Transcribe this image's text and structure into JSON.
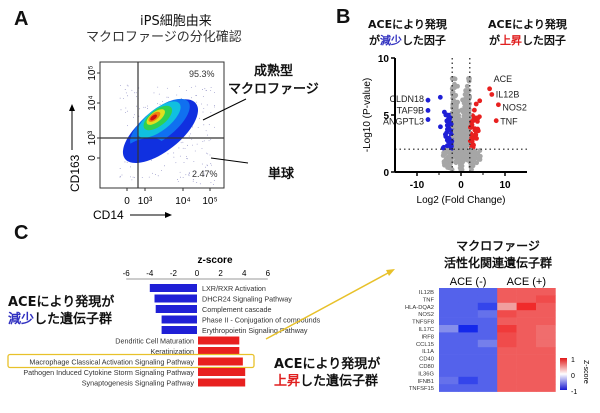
{
  "panels": {
    "a": {
      "letter": "A",
      "title_line1": "iPS細胞由来",
      "title_line2": "マクロファージの分化確認",
      "label_mature_1": "成熟型",
      "label_mature_2": "マクロファージ",
      "label_monocyte": "単球"
    },
    "b": {
      "letter": "B",
      "left_title_1": "ACEにより発現",
      "left_title_2a": "が",
      "left_title_2b": "減少",
      "left_title_2c": "した因子",
      "right_title_1": "ACEにより発現",
      "right_title_2a": "が",
      "right_title_2b": "上昇",
      "right_title_2c": "した因子"
    },
    "c": {
      "letter": "C",
      "down_label_1": "ACEにより発現が",
      "down_label_2a": "減少",
      "down_label_2b": "した遺伝子群",
      "up_label_1": "ACEにより発現が",
      "up_label_2a": "上昇",
      "up_label_2b": "した遺伝子群",
      "heatmap_title_1": "マクロファージ",
      "heatmap_title_2": "活性化関連遺伝子群"
    }
  },
  "colors": {
    "down": "#1f1fd6",
    "up": "#e8201f",
    "ns": "#a6a6a6",
    "highlight": "#e8c12a",
    "accent_down_text": "#3030c0",
    "accent_up_text": "#e02020"
  },
  "chart_data": [
    {
      "type": "scatter",
      "subtype": "flow-cytometry-density",
      "xlabel": "CD14",
      "ylabel": "CD163",
      "x_ticks": [
        "0",
        "10³",
        "10⁴",
        "10⁵"
      ],
      "y_ticks": [
        "0",
        "10³",
        "10⁴",
        "10⁵"
      ],
      "quadrant_values": {
        "upper_right": "95.3%",
        "lower_right": "2.47%"
      }
    },
    {
      "type": "scatter",
      "subtype": "volcano",
      "xlabel": "Log2 (Fold Change)",
      "ylabel": "-Log10 (P-value)",
      "xlim": [
        -15,
        15
      ],
      "ylim": [
        0,
        10
      ],
      "x_ticks": [
        "-10",
        "0",
        "10"
      ],
      "y_ticks": [
        "0",
        "5",
        "10"
      ],
      "thresholds": {
        "fold_change": [
          -2,
          2
        ],
        "p_value": 2
      },
      "labeled_genes": [
        {
          "name": "CLDN18",
          "x": -7.5,
          "y": 6.3
        },
        {
          "name": "TAF9B",
          "x": -7.5,
          "y": 5.4
        },
        {
          "name": "ANGPTL3",
          "x": -7.5,
          "y": 4.6
        },
        {
          "name": "ACE",
          "x": 6.5,
          "y": 7.3
        },
        {
          "name": "IL12B",
          "x": 7.0,
          "y": 6.8
        },
        {
          "name": "NOS2",
          "x": 8.5,
          "y": 5.9
        },
        {
          "name": "TNF",
          "x": 8.0,
          "y": 4.5
        }
      ]
    },
    {
      "type": "bar",
      "orientation": "horizontal",
      "title": "z-score",
      "xlim": [
        -6,
        6
      ],
      "x_ticks": [
        "-6",
        "-4",
        "-2",
        "0",
        "2",
        "4",
        "6"
      ],
      "categories": [
        "LXR/RXR Activation",
        "DHCR24 Signaling Pathway",
        "Complement cascade",
        "Phase II - Conjugation of compounds",
        "Erythropoietin Signaling Pathway",
        "Dendritic Cell Maturation",
        "Keratinization",
        "Macrophage Classical Activation Signaling Pathway",
        "Pathogen Induced Cytokine Storm Signaling Pathway",
        "Synaptogenesis Signaling Pathway"
      ],
      "values": [
        -4.0,
        -3.6,
        -3.5,
        -3.0,
        -3.0,
        3.5,
        3.5,
        3.8,
        4.0,
        4.0
      ],
      "highlighted": "Macrophage Classical Activation Signaling Pathway"
    },
    {
      "type": "heatmap",
      "column_groups": [
        "ACE (-)",
        "ACE (+)"
      ],
      "rows": [
        "IL12B",
        "TNF",
        "HLA-DQA2",
        "NOS2",
        "TNFSF8",
        "IL17C",
        "IRF8",
        "CCL15",
        "IL1A",
        "CD40",
        "CD80",
        "IL36G",
        "IFNB1",
        "TNFSF15"
      ],
      "values": [
        [
          -0.9,
          -0.9,
          -0.9,
          0.9,
          0.9,
          0.9
        ],
        [
          -0.9,
          -0.9,
          -0.9,
          0.9,
          0.9,
          1.0
        ],
        [
          -0.9,
          -0.9,
          -1.1,
          0.5,
          1.2,
          0.9
        ],
        [
          -0.9,
          -0.9,
          -0.8,
          1.0,
          0.9,
          0.9
        ],
        [
          -0.9,
          -0.9,
          -0.9,
          0.9,
          0.9,
          0.9
        ],
        [
          -0.6,
          -1.3,
          -0.9,
          1.1,
          0.9,
          0.8
        ],
        [
          -0.9,
          -0.9,
          -0.9,
          1.0,
          0.9,
          0.8
        ],
        [
          -0.9,
          -0.9,
          -0.7,
          1.0,
          0.9,
          0.8
        ],
        [
          -0.9,
          -0.9,
          -0.9,
          0.9,
          0.9,
          0.9
        ],
        [
          -0.9,
          -0.9,
          -0.9,
          0.9,
          0.9,
          0.9
        ],
        [
          -0.9,
          -0.9,
          -0.9,
          0.9,
          0.9,
          0.9
        ],
        [
          -0.9,
          -0.9,
          -0.9,
          0.9,
          0.9,
          0.9
        ],
        [
          -0.8,
          -1.1,
          -0.9,
          0.9,
          0.9,
          0.9
        ],
        [
          -0.9,
          -0.9,
          -0.9,
          0.9,
          0.9,
          0.9
        ]
      ],
      "colorbar": {
        "label": "Z-score",
        "ticks": [
          "1",
          "0",
          "-1"
        ],
        "range": [
          -1,
          1
        ]
      }
    }
  ]
}
